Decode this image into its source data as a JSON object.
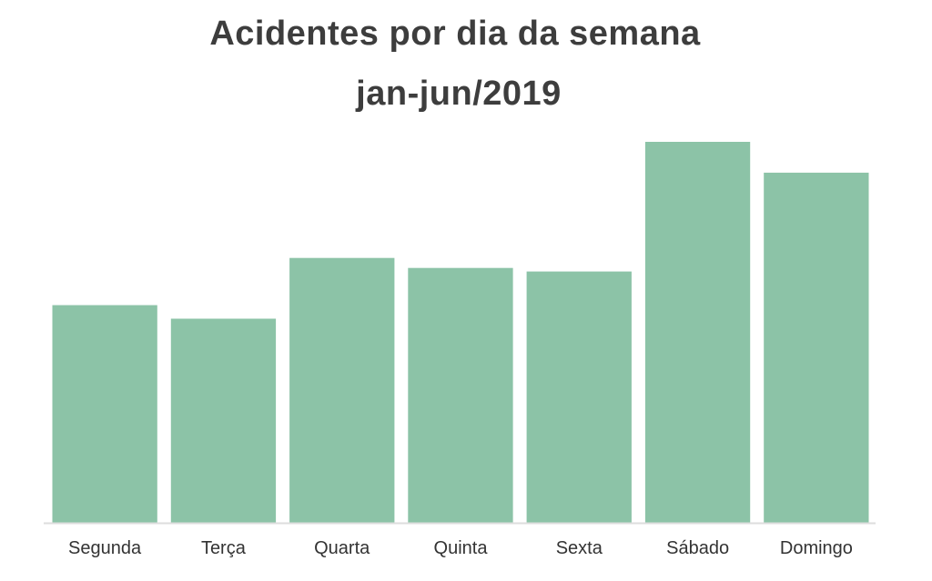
{
  "chart_data": {
    "type": "bar",
    "title": "Acidentes por dia da semana",
    "subtitle": "jan-jun/2019",
    "categories": [
      "Segunda",
      "Terça",
      "Quarta",
      "Quinta",
      "Sexta",
      "Sábado",
      "Domingo"
    ],
    "values": [
      240,
      225,
      292,
      281,
      277,
      420,
      386
    ],
    "ylim": [
      0,
      430
    ],
    "grid": false,
    "legend": "none",
    "bar_color": "#8cc3a7",
    "axis_color": "#dddddd"
  }
}
